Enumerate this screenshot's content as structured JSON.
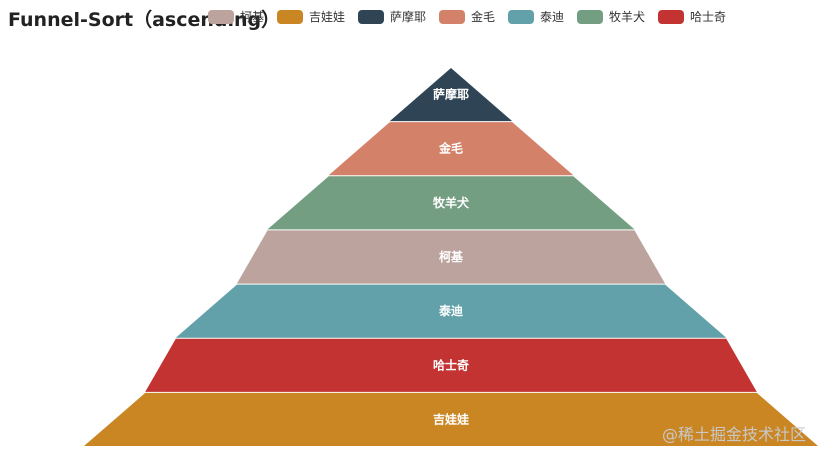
{
  "chart_data": {
    "type": "funnel",
    "title": "Funnel-Sort（ascending）",
    "sort": "ascending",
    "legend_position": "top",
    "legend": [
      "柯基",
      "吉娃娃",
      "萨摩耶",
      "金毛",
      "泰迪",
      "牧羊犬",
      "哈士奇"
    ],
    "colors": {
      "柯基": "#bca39d",
      "吉娃娃": "#ca8623",
      "萨摩耶": "#2f4556",
      "金毛": "#d4816a",
      "泰迪": "#62a1a9",
      "牧羊犬": "#749e82",
      "哈士奇": "#c23332"
    },
    "values": {
      "萨摩耶": 20,
      "金毛": 40,
      "牧羊犬": 60,
      "柯基": 70,
      "泰迪": 90,
      "哈士奇": 100,
      "吉娃娃": 120
    }
  },
  "watermark": "@稀土掘金技术社区"
}
